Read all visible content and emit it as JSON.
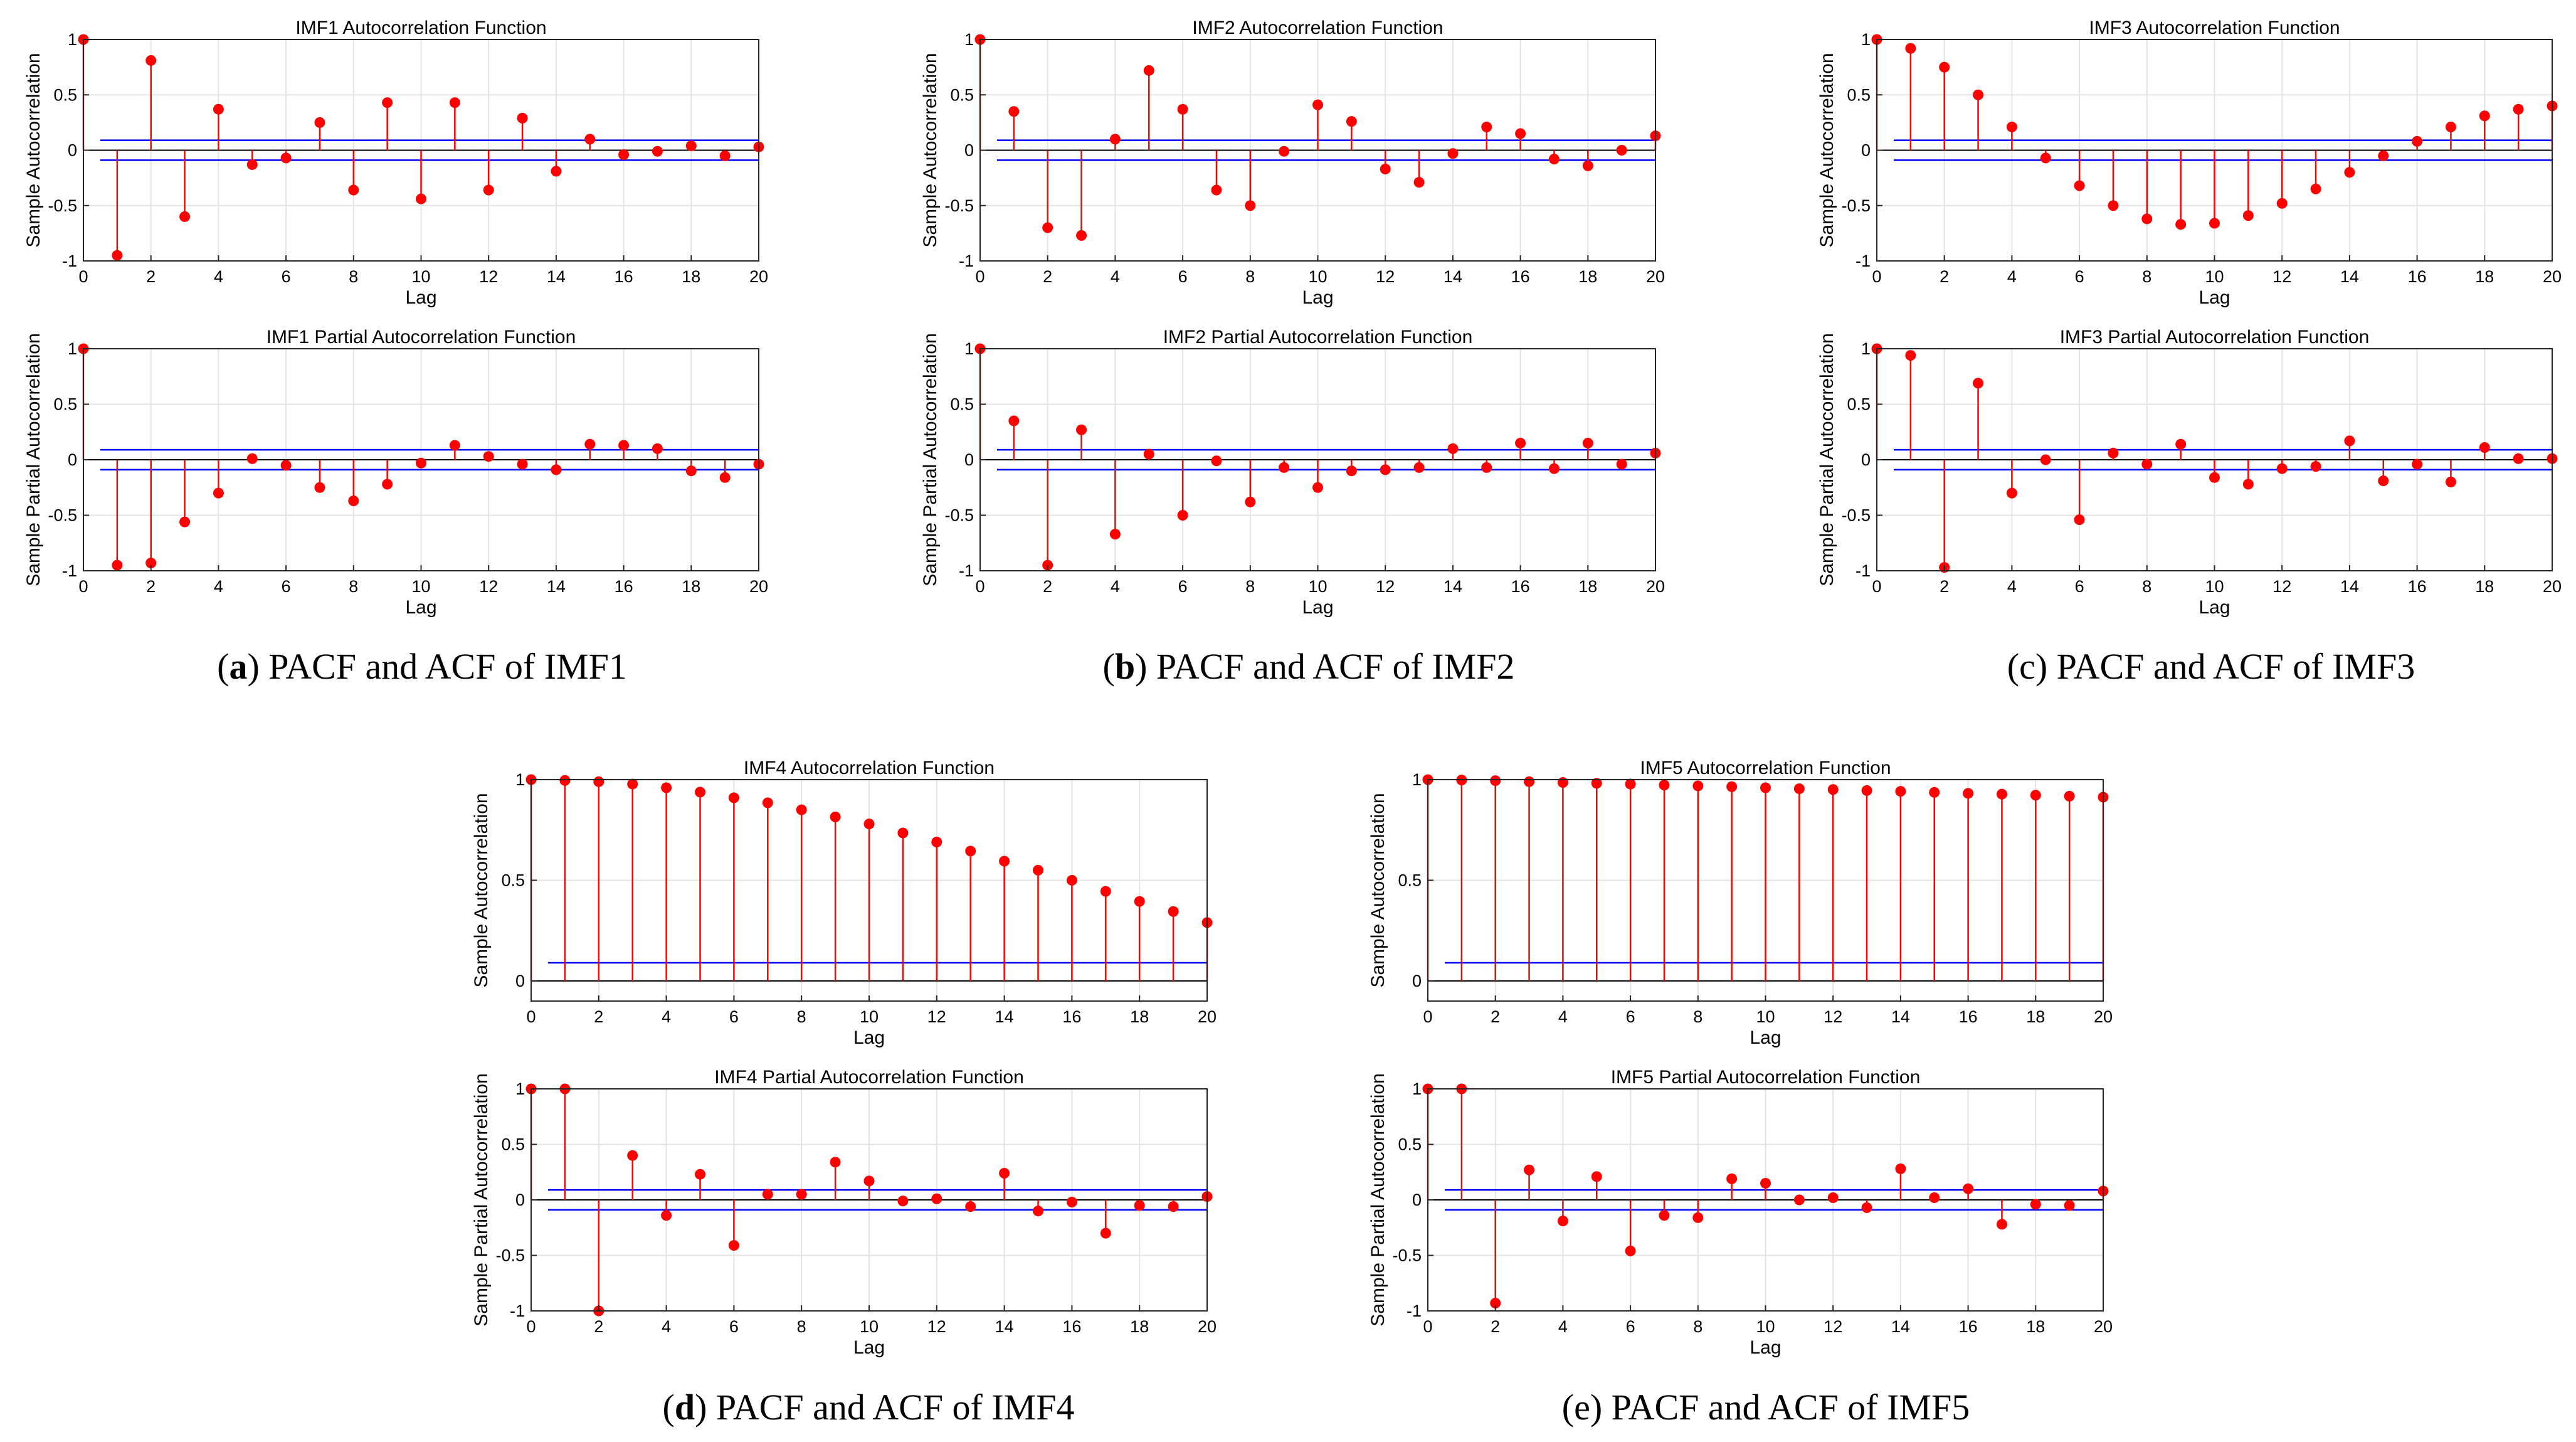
{
  "figure": {
    "panel_captions": [
      {
        "letter": "a",
        "paren_open": "(",
        "paren_close": ")",
        "text": " PACF and ACF of IMF1"
      },
      {
        "letter": "b",
        "paren_open": "(",
        "paren_close": ")",
        "text": " PACF and ACF of IMF2"
      },
      {
        "letter": "c",
        "paren_open": "(",
        "paren_close": ")",
        "text": " PACF and ACF of IMF3"
      },
      {
        "letter": "d",
        "paren_open": "(",
        "paren_close": ")",
        "text": " PACF and ACF of IMF4"
      },
      {
        "letter": "e",
        "paren_open": "(",
        "paren_close": ")",
        "text": " PACF and ACF of IMF5"
      }
    ],
    "stem_color": "#ff0000",
    "bound_color": "#0000ff",
    "axis_color": "#000000"
  },
  "chart_data": [
    {
      "type": "stem",
      "panel": "a",
      "title": "IMF1 Autocorrelation Function",
      "xlabel": "Lag",
      "ylabel": "Sample Autocorrelation",
      "xlim": [
        0,
        20
      ],
      "ylim": [
        -1,
        1
      ],
      "xticks": [
        0,
        2,
        4,
        6,
        8,
        10,
        12,
        14,
        16,
        18,
        20
      ],
      "yticks": [
        -1,
        -0.5,
        0,
        0.5,
        1
      ],
      "grid": true,
      "bounds": [
        0.09,
        -0.09
      ],
      "x": [
        0,
        1,
        2,
        3,
        4,
        5,
        6,
        7,
        8,
        9,
        10,
        11,
        12,
        13,
        14,
        15,
        16,
        17,
        18,
        19,
        20
      ],
      "values": [
        1,
        -0.95,
        0.81,
        -0.6,
        0.37,
        -0.13,
        -0.07,
        0.25,
        -0.36,
        0.43,
        -0.44,
        0.43,
        -0.36,
        0.29,
        -0.19,
        0.1,
        -0.04,
        -0.01,
        0.04,
        -0.05,
        0.03
      ]
    },
    {
      "type": "stem",
      "panel": "a",
      "title": "IMF1 Partial Autocorrelation Function",
      "xlabel": "Lag",
      "ylabel": "Sample Partial Autocorrelation",
      "xlim": [
        0,
        20
      ],
      "ylim": [
        -1,
        1
      ],
      "xticks": [
        0,
        2,
        4,
        6,
        8,
        10,
        12,
        14,
        16,
        18,
        20
      ],
      "yticks": [
        -1,
        -0.5,
        0,
        0.5,
        1
      ],
      "grid": true,
      "bounds": [
        0.09,
        -0.09
      ],
      "x": [
        0,
        1,
        2,
        3,
        4,
        5,
        6,
        7,
        8,
        9,
        10,
        11,
        12,
        13,
        14,
        15,
        16,
        17,
        18,
        19,
        20
      ],
      "values": [
        1,
        -0.95,
        -0.93,
        -0.56,
        -0.3,
        0.01,
        -0.05,
        -0.25,
        -0.37,
        -0.22,
        -0.03,
        0.13,
        0.03,
        -0.04,
        -0.09,
        0.14,
        0.13,
        0.1,
        -0.1,
        -0.16,
        -0.04
      ]
    },
    {
      "type": "stem",
      "panel": "b",
      "title": "IMF2 Autocorrelation Function",
      "xlabel": "Lag",
      "ylabel": "Sample Autocorrelation",
      "xlim": [
        0,
        20
      ],
      "ylim": [
        -1,
        1
      ],
      "xticks": [
        0,
        2,
        4,
        6,
        8,
        10,
        12,
        14,
        16,
        18,
        20
      ],
      "yticks": [
        -1,
        -0.5,
        0,
        0.5,
        1
      ],
      "grid": true,
      "bounds": [
        0.09,
        -0.09
      ],
      "x": [
        0,
        1,
        2,
        3,
        4,
        5,
        6,
        7,
        8,
        9,
        10,
        11,
        12,
        13,
        14,
        15,
        16,
        17,
        18,
        19,
        20
      ],
      "values": [
        1,
        0.35,
        -0.7,
        -0.77,
        0.1,
        0.72,
        0.37,
        -0.36,
        -0.5,
        -0.01,
        0.41,
        0.26,
        -0.17,
        -0.29,
        -0.03,
        0.21,
        0.15,
        -0.08,
        -0.14,
        0.0,
        0.13
      ]
    },
    {
      "type": "stem",
      "panel": "b",
      "title": "IMF2 Partial Autocorrelation Function",
      "xlabel": "Lag",
      "ylabel": "Sample Partial Autocorrelation",
      "xlim": [
        0,
        20
      ],
      "ylim": [
        -1,
        1
      ],
      "xticks": [
        0,
        2,
        4,
        6,
        8,
        10,
        12,
        14,
        16,
        18,
        20
      ],
      "yticks": [
        -1,
        -0.5,
        0,
        0.5,
        1
      ],
      "grid": true,
      "bounds": [
        0.09,
        -0.09
      ],
      "x": [
        0,
        1,
        2,
        3,
        4,
        5,
        6,
        7,
        8,
        9,
        10,
        11,
        12,
        13,
        14,
        15,
        16,
        17,
        18,
        19,
        20
      ],
      "values": [
        1,
        0.35,
        -0.95,
        0.27,
        -0.67,
        0.05,
        -0.5,
        -0.01,
        -0.38,
        -0.07,
        -0.25,
        -0.1,
        -0.09,
        -0.07,
        0.1,
        -0.07,
        0.15,
        -0.08,
        0.15,
        -0.04,
        0.06
      ]
    },
    {
      "type": "stem",
      "panel": "c",
      "title": "IMF3 Autocorrelation Function",
      "xlabel": "Lag",
      "ylabel": "Sample Autocorrelation",
      "xlim": [
        0,
        20
      ],
      "ylim": [
        -1,
        1
      ],
      "xticks": [
        0,
        2,
        4,
        6,
        8,
        10,
        12,
        14,
        16,
        18,
        20
      ],
      "yticks": [
        -1,
        -0.5,
        0,
        0.5,
        1
      ],
      "grid": true,
      "bounds": [
        0.09,
        -0.09
      ],
      "x": [
        0,
        1,
        2,
        3,
        4,
        5,
        6,
        7,
        8,
        9,
        10,
        11,
        12,
        13,
        14,
        15,
        16,
        17,
        18,
        19,
        20
      ],
      "values": [
        1,
        0.92,
        0.75,
        0.5,
        0.21,
        -0.07,
        -0.32,
        -0.5,
        -0.62,
        -0.67,
        -0.66,
        -0.59,
        -0.48,
        -0.35,
        -0.2,
        -0.05,
        0.08,
        0.21,
        0.31,
        0.37,
        0.4
      ]
    },
    {
      "type": "stem",
      "panel": "c",
      "title": "IMF3 Partial Autocorrelation Function",
      "xlabel": "Lag",
      "ylabel": "Sample Partial Autocorrelation",
      "xlim": [
        0,
        20
      ],
      "ylim": [
        -1,
        1
      ],
      "xticks": [
        0,
        2,
        4,
        6,
        8,
        10,
        12,
        14,
        16,
        18,
        20
      ],
      "yticks": [
        -1,
        -0.5,
        0,
        0.5,
        1
      ],
      "grid": true,
      "bounds": [
        0.09,
        -0.09
      ],
      "x": [
        0,
        1,
        2,
        3,
        4,
        5,
        6,
        7,
        8,
        9,
        10,
        11,
        12,
        13,
        14,
        15,
        16,
        17,
        18,
        19,
        20
      ],
      "values": [
        1,
        0.94,
        -0.97,
        0.69,
        -0.3,
        0.0,
        -0.54,
        0.06,
        -0.04,
        0.14,
        -0.16,
        -0.22,
        -0.08,
        -0.06,
        0.17,
        -0.19,
        -0.04,
        -0.2,
        0.11,
        0.01,
        0.01
      ]
    },
    {
      "type": "stem",
      "panel": "d",
      "title": "IMF4 Autocorrelation Function",
      "xlabel": "Lag",
      "ylabel": "Sample Autocorrelation",
      "xlim": [
        0,
        20
      ],
      "ylim": [
        -0.1,
        1
      ],
      "xticks": [
        0,
        2,
        4,
        6,
        8,
        10,
        12,
        14,
        16,
        18,
        20
      ],
      "yticks": [
        0,
        0.5,
        1
      ],
      "grid": true,
      "bounds": [
        0.09
      ],
      "x": [
        0,
        1,
        2,
        3,
        4,
        5,
        6,
        7,
        8,
        9,
        10,
        11,
        12,
        13,
        14,
        15,
        16,
        17,
        18,
        19,
        20
      ],
      "values": [
        1,
        0.996,
        0.99,
        0.978,
        0.96,
        0.938,
        0.91,
        0.885,
        0.85,
        0.815,
        0.78,
        0.735,
        0.69,
        0.645,
        0.595,
        0.55,
        0.5,
        0.445,
        0.395,
        0.345,
        0.29
      ]
    },
    {
      "type": "stem",
      "panel": "d",
      "title": "IMF4 Partial Autocorrelation Function",
      "xlabel": "Lag",
      "ylabel": "Sample Partial Autocorrelation",
      "xlim": [
        0,
        20
      ],
      "ylim": [
        -1,
        1
      ],
      "xticks": [
        0,
        2,
        4,
        6,
        8,
        10,
        12,
        14,
        16,
        18,
        20
      ],
      "yticks": [
        -1,
        -0.5,
        0,
        0.5,
        1
      ],
      "grid": true,
      "bounds": [
        0.09,
        -0.09
      ],
      "x": [
        0,
        1,
        2,
        3,
        4,
        5,
        6,
        7,
        8,
        9,
        10,
        11,
        12,
        13,
        14,
        15,
        16,
        17,
        18,
        19,
        20
      ],
      "values": [
        1,
        1,
        -1,
        0.4,
        -0.14,
        0.23,
        -0.41,
        0.05,
        0.05,
        0.34,
        0.17,
        -0.01,
        0.01,
        -0.06,
        0.24,
        -0.1,
        -0.02,
        -0.3,
        -0.05,
        -0.06,
        0.03
      ]
    },
    {
      "type": "stem",
      "panel": "e",
      "title": "IMF5 Autocorrelation Function",
      "xlabel": "Lag",
      "ylabel": "Sample Autocorrelation",
      "xlim": [
        0,
        20
      ],
      "ylim": [
        -0.1,
        1
      ],
      "xticks": [
        0,
        2,
        4,
        6,
        8,
        10,
        12,
        14,
        16,
        18,
        20
      ],
      "yticks": [
        0,
        0.5,
        1
      ],
      "grid": true,
      "bounds": [
        0.09
      ],
      "x": [
        0,
        1,
        2,
        3,
        4,
        5,
        6,
        7,
        8,
        9,
        10,
        11,
        12,
        13,
        14,
        15,
        16,
        17,
        18,
        19,
        20
      ],
      "values": [
        1,
        0.998,
        0.995,
        0.99,
        0.986,
        0.982,
        0.978,
        0.973,
        0.969,
        0.965,
        0.96,
        0.955,
        0.951,
        0.946,
        0.942,
        0.937,
        0.932,
        0.928,
        0.923,
        0.918,
        0.913
      ]
    },
    {
      "type": "stem",
      "panel": "e",
      "title": "IMF5 Partial Autocorrelation Function",
      "xlabel": "Lag",
      "ylabel": "Sample Partial Autocorrelation",
      "xlim": [
        0,
        20
      ],
      "ylim": [
        -1,
        1
      ],
      "xticks": [
        0,
        2,
        4,
        6,
        8,
        10,
        12,
        14,
        16,
        18,
        20
      ],
      "yticks": [
        -1,
        -0.5,
        0,
        0.5,
        1
      ],
      "grid": true,
      "bounds": [
        0.09,
        -0.09
      ],
      "x": [
        0,
        1,
        2,
        3,
        4,
        5,
        6,
        7,
        8,
        9,
        10,
        11,
        12,
        13,
        14,
        15,
        16,
        17,
        18,
        19,
        20
      ],
      "values": [
        1,
        1,
        -0.93,
        0.27,
        -0.19,
        0.21,
        -0.46,
        -0.14,
        -0.16,
        0.19,
        0.15,
        0.0,
        0.02,
        -0.07,
        0.28,
        0.02,
        0.1,
        -0.22,
        -0.04,
        -0.05,
        0.08
      ]
    }
  ]
}
